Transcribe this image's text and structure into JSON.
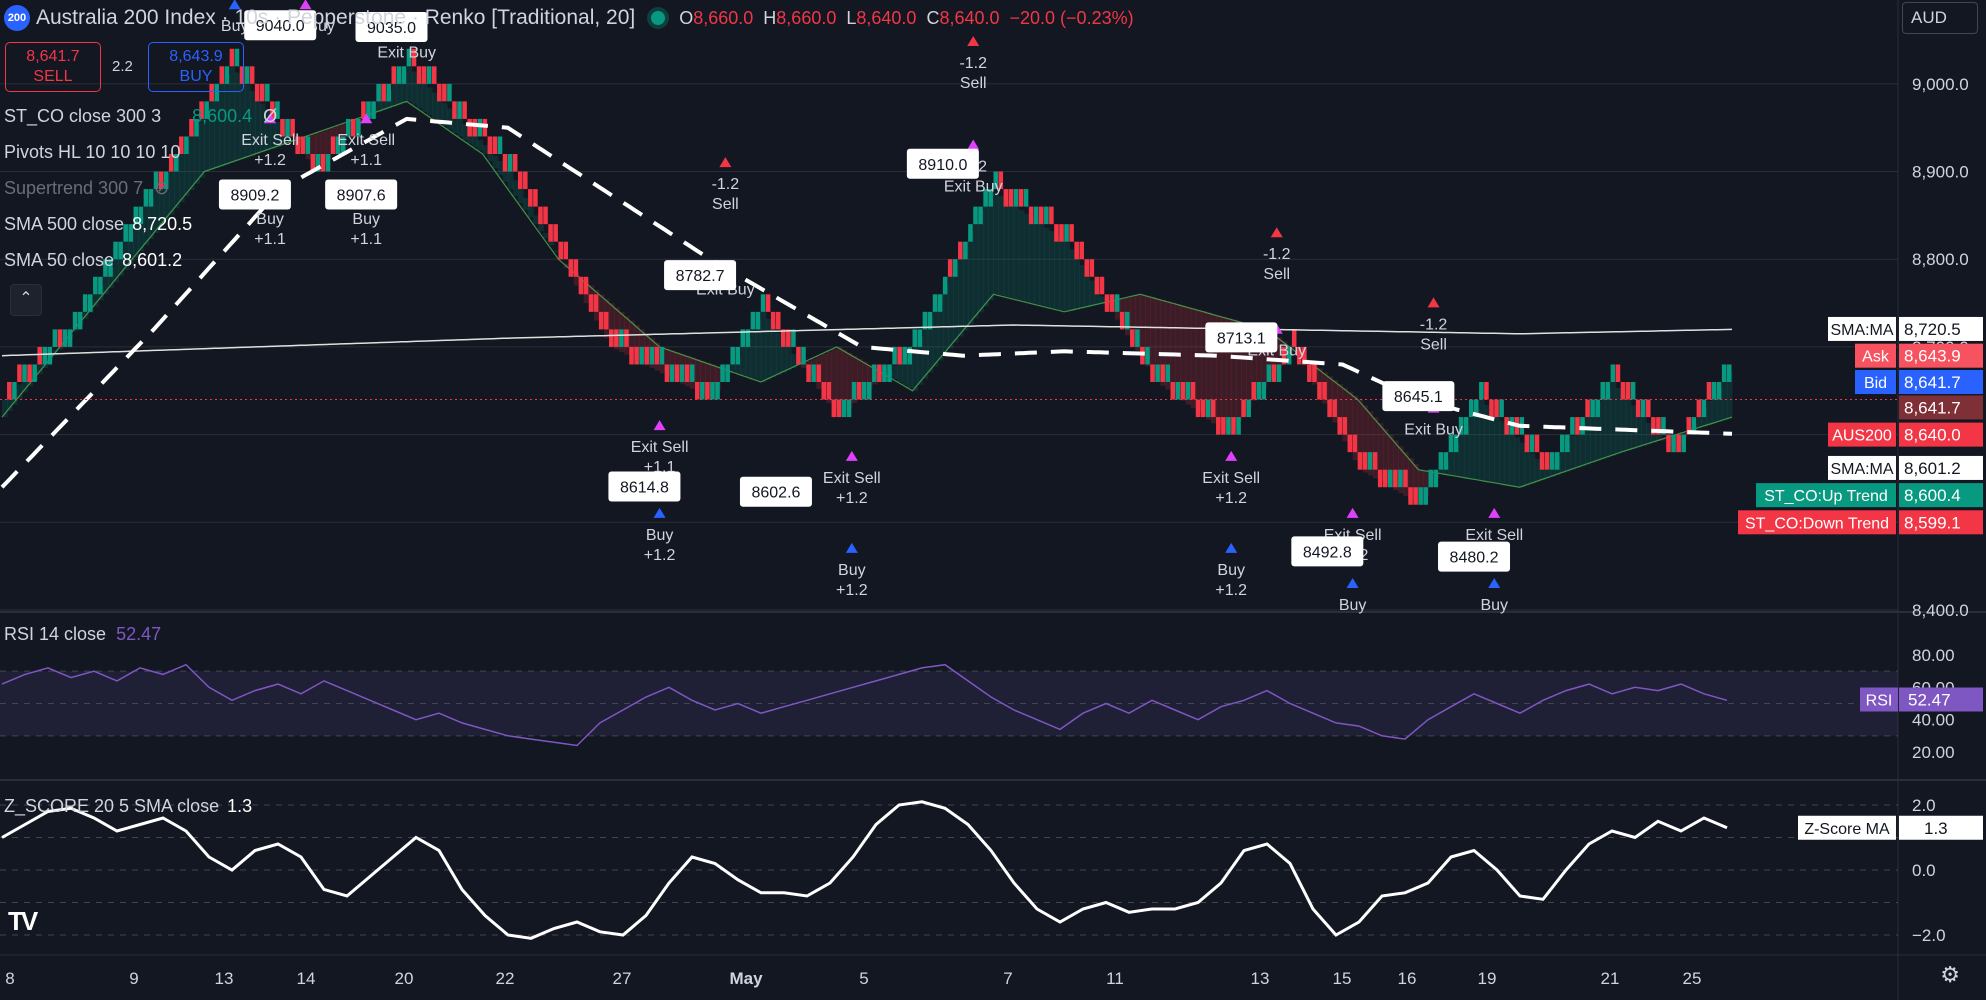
{
  "header": {
    "symbol_badge": "200",
    "title": "Australia 200 Index · 10s · Pepperstone · Renko [Traditional, 20]",
    "ohlc": {
      "o_label": "O",
      "o": "8,660.0",
      "h_label": "H",
      "h": "8,660.0",
      "l_label": "L",
      "l": "8,640.0",
      "c_label": "C",
      "c": "8,640.0",
      "change": "−20.0 (−0.23%)"
    },
    "currency": "AUD"
  },
  "trade": {
    "sell_price": "8,641.7",
    "sell_label": "SELL",
    "spread": "2.2",
    "buy_price": "8,643.9",
    "buy_label": "BUY"
  },
  "indicators": {
    "st_co": {
      "label": "ST_CO close 300 3",
      "value": "8,600.4",
      "extra": "Ø"
    },
    "pivots": {
      "label": "Pivots HL 10 10 10 10"
    },
    "supertrend": {
      "label": "Supertrend 300 7"
    },
    "sma500": {
      "label": "SMA 500 close",
      "value": "8,720.5"
    },
    "sma50": {
      "label": "SMA 50 close",
      "value": "8,601.2"
    },
    "rsi": {
      "label": "RSI 14 close",
      "value": "52.47"
    },
    "zscore": {
      "label": "Z_SCORE 20 5 SMA close",
      "value": "1.3"
    }
  },
  "colors": {
    "bg": "#131722",
    "up": "#089981",
    "down": "#f23645",
    "rsi": "#7e57c2",
    "signal_buy": "#2962ff",
    "signal_exit": "#e040fb",
    "grid": "#2a2e39",
    "text": "#d1d4dc"
  },
  "chart_data": [
    {
      "type": "renko",
      "title": "Australia 200 Index · 10s · Pepperstone · Renko [Traditional, 20]",
      "box_size": 20,
      "ylim": [
        8400,
        9050
      ],
      "y_ticks": [
        "9,000.0",
        "8,900.0",
        "8,800.0",
        "8,700.0",
        "8,600.0",
        "8,500.0",
        "8,400.0"
      ],
      "x_ticks": [
        "8",
        "9",
        "13",
        "14",
        "20",
        "22",
        "27",
        "May",
        "5",
        "7",
        "11",
        "13",
        "15",
        "16",
        "19",
        "21",
        "25"
      ],
      "close_path": [
        [
          0,
          8640
        ],
        [
          14,
          8720
        ],
        [
          30,
          8880
        ],
        [
          45,
          9020
        ],
        [
          62,
          8900
        ],
        [
          80,
          9020
        ],
        [
          100,
          8900
        ],
        [
          120,
          8700
        ],
        [
          140,
          8640
        ],
        [
          150,
          8740
        ],
        [
          165,
          8620
        ],
        [
          180,
          8700
        ],
        [
          195,
          8880
        ],
        [
          210,
          8820
        ],
        [
          228,
          8660
        ],
        [
          242,
          8600
        ],
        [
          255,
          8700
        ],
        [
          268,
          8560
        ],
        [
          280,
          8520
        ],
        [
          292,
          8640
        ],
        [
          305,
          8560
        ],
        [
          318,
          8660
        ],
        [
          330,
          8580
        ],
        [
          342,
          8680
        ]
      ],
      "sma500_path": [
        [
          0,
          8690
        ],
        [
          100,
          8710
        ],
        [
          200,
          8725
        ],
        [
          300,
          8715
        ],
        [
          342,
          8720
        ]
      ],
      "sma50_path": [
        [
          0,
          8540
        ],
        [
          30,
          8720
        ],
        [
          55,
          8880
        ],
        [
          80,
          8960
        ],
        [
          100,
          8950
        ],
        [
          140,
          8800
        ],
        [
          170,
          8700
        ],
        [
          190,
          8690
        ],
        [
          210,
          8695
        ],
        [
          240,
          8690
        ],
        [
          265,
          8680
        ],
        [
          280,
          8640
        ],
        [
          300,
          8610
        ],
        [
          342,
          8601
        ]
      ],
      "supertrend_path": [
        [
          0,
          8620
        ],
        [
          40,
          8900
        ],
        [
          80,
          8980
        ],
        [
          95,
          8920
        ],
        [
          110,
          8800
        ],
        [
          130,
          8700
        ],
        [
          150,
          8660
        ],
        [
          165,
          8700
        ],
        [
          180,
          8650
        ],
        [
          196,
          8760
        ],
        [
          210,
          8740
        ],
        [
          225,
          8760
        ],
        [
          250,
          8720
        ],
        [
          268,
          8640
        ],
        [
          280,
          8560
        ],
        [
          300,
          8540
        ],
        [
          320,
          8580
        ],
        [
          342,
          8620
        ]
      ],
      "pivot_labels": [
        {
          "text": "9040.0",
          "i": 55,
          "v": 9068
        },
        {
          "text": "9035.0",
          "i": 77,
          "v": 9066
        },
        {
          "text": "8909.2",
          "i": 50,
          "v": 8875
        },
        {
          "text": "8907.6",
          "i": 71,
          "v": 8875
        },
        {
          "text": "8782.7",
          "i": 138,
          "v": 8783
        },
        {
          "text": "8614.8",
          "i": 127,
          "v": 8542
        },
        {
          "text": "8602.6",
          "i": 153,
          "v": 8536
        },
        {
          "text": "8910.0",
          "i": 186,
          "v": 8910
        },
        {
          "text": "8713.1",
          "i": 245,
          "v": 8712
        },
        {
          "text": "8645.1",
          "i": 280,
          "v": 8645
        },
        {
          "text": "8492.8",
          "i": 262,
          "v": 8468
        },
        {
          "text": "8480.2",
          "i": 291,
          "v": 8462
        }
      ],
      "signals": [
        {
          "text": "Exit Sell",
          "sub": "+1.2",
          "i": 53,
          "v": 8930,
          "kind": "exit"
        },
        {
          "text": "Buy",
          "sub": "+1.1",
          "i": 53,
          "v": 8840,
          "kind": "buy"
        },
        {
          "text": "Exit Sell",
          "sub": "+1.1",
          "i": 72,
          "v": 8930,
          "kind": "exit"
        },
        {
          "text": "Buy",
          "sub": "+1.1",
          "i": 72,
          "v": 8840,
          "kind": "buy"
        },
        {
          "text": "Exit Buy",
          "sub": "",
          "i": 80,
          "v": 9030,
          "kind": "exit"
        },
        {
          "text": "Exit Buy",
          "sub": "",
          "i": 60,
          "v": 9060,
          "kind": "exit"
        },
        {
          "text": "Buy",
          "sub": "",
          "i": 46,
          "v": 9060,
          "kind": "buy"
        },
        {
          "text": "-1.2",
          "sub": "Sell",
          "i": 143,
          "v": 8880,
          "kind": "sell"
        },
        {
          "text": "Exit Buy",
          "sub": "",
          "i": 143,
          "v": 8760,
          "kind": "exit"
        },
        {
          "text": "Exit Sell",
          "sub": "+1.1",
          "i": 130,
          "v": 8580,
          "kind": "exit"
        },
        {
          "text": "Buy",
          "sub": "+1.2",
          "i": 130,
          "v": 8480,
          "kind": "buy"
        },
        {
          "text": "Exit Sell",
          "sub": "+1.2",
          "i": 168,
          "v": 8545,
          "kind": "exit"
        },
        {
          "text": "Buy",
          "sub": "+1.2",
          "i": 168,
          "v": 8440,
          "kind": "buy"
        },
        {
          "text": "-1.2",
          "sub": "Sell",
          "i": 192,
          "v": 9018,
          "kind": "sell"
        },
        {
          "text": "-1.2",
          "sub": "Exit Buy",
          "i": 192,
          "v": 8900,
          "kind": "exit"
        },
        {
          "text": "-1.2",
          "sub": "Sell",
          "i": 252,
          "v": 8800,
          "kind": "sell"
        },
        {
          "text": "Exit Buy",
          "sub": "",
          "i": 252,
          "v": 8690,
          "kind": "exit"
        },
        {
          "text": "Exit Sell",
          "sub": "+1.2",
          "i": 243,
          "v": 8545,
          "kind": "exit"
        },
        {
          "text": "Buy",
          "sub": "+1.2",
          "i": 243,
          "v": 8440,
          "kind": "buy"
        },
        {
          "text": "-1.2",
          "sub": "Sell",
          "i": 283,
          "v": 8720,
          "kind": "sell"
        },
        {
          "text": "Exit Buy",
          "sub": "",
          "i": 283,
          "v": 8600,
          "kind": "exit"
        },
        {
          "text": "Exit Sell",
          "sub": "+1.2",
          "i": 267,
          "v": 8480,
          "kind": "exit"
        },
        {
          "text": "Exit Sell",
          "sub": "+1.2",
          "i": 295,
          "v": 8480,
          "kind": "exit"
        },
        {
          "text": "Buy",
          "sub": "",
          "i": 267,
          "v": 8400,
          "kind": "buy"
        },
        {
          "text": "Buy",
          "sub": "",
          "i": 295,
          "v": 8400,
          "kind": "buy"
        }
      ],
      "price_scale_tags": [
        {
          "label": "SMA:MA",
          "value": "8,720.5",
          "bg": "#ffffff",
          "fg": "#131722",
          "v": 8720.5
        },
        {
          "label": "Ask",
          "value": "8,643.9",
          "bg": "#f7525f",
          "fg": "#ffffff",
          "v": 8690
        },
        {
          "label": "Bid",
          "value": "8,641.7",
          "bg": "#2962ff",
          "fg": "#ffffff",
          "v": 8660
        },
        {
          "label": "",
          "value": "8,641.7",
          "bg": "#7f2f36",
          "fg": "#ffffff",
          "v": 8631
        },
        {
          "label": "AUS200",
          "value": "8,640.0",
          "bg": "#f23645",
          "fg": "#ffffff",
          "v": 8600
        },
        {
          "label": "SMA:MA",
          "value": "8,601.2",
          "bg": "#ffffff",
          "fg": "#131722",
          "v": 8562
        },
        {
          "label": "ST_CO:Up Trend",
          "value": "8,600.4",
          "bg": "#089981",
          "fg": "#ffffff",
          "v": 8531
        },
        {
          "label": "ST_CO:Down Trend",
          "value": "8,599.1",
          "bg": "#f23645",
          "fg": "#ffffff",
          "v": 8500
        }
      ]
    },
    {
      "type": "line",
      "title": "RSI 14 close",
      "ylim": [
        20,
        80
      ],
      "y_ticks": [
        "80.00",
        "60.00",
        "40.00",
        "20.00"
      ],
      "band": [
        30,
        70
      ],
      "series": [
        {
          "name": "RSI",
          "values": [
            62,
            68,
            72,
            66,
            70,
            64,
            72,
            68,
            74,
            60,
            52,
            58,
            62,
            56,
            64,
            58,
            52,
            46,
            40,
            44,
            38,
            34,
            30,
            28,
            26,
            24,
            38,
            46,
            54,
            60,
            52,
            46,
            50,
            44,
            48,
            52,
            56,
            60,
            64,
            68,
            72,
            74,
            64,
            54,
            46,
            40,
            34,
            44,
            50,
            44,
            52,
            46,
            40,
            48,
            52,
            58,
            50,
            44,
            38,
            36,
            30,
            28,
            40,
            48,
            56,
            50,
            44,
            52,
            58,
            62,
            56,
            60,
            58,
            62,
            56,
            52
          ]
        }
      ],
      "last": "52.47",
      "tag": {
        "label": "RSI",
        "value": "52.47"
      }
    },
    {
      "type": "line",
      "title": "Z_SCORE 20 5 SMA close",
      "ylim": [
        -2,
        2
      ],
      "y_ticks": [
        "2.0",
        "0.0",
        "−2.0"
      ],
      "series": [
        {
          "name": "Z-Score MA",
          "values": [
            1.0,
            1.4,
            1.8,
            1.9,
            1.6,
            1.2,
            1.4,
            1.6,
            1.2,
            0.4,
            0.0,
            0.6,
            0.8,
            0.4,
            -0.6,
            -0.8,
            -0.2,
            0.4,
            1.0,
            0.6,
            -0.6,
            -1.4,
            -2.0,
            -2.1,
            -1.8,
            -1.6,
            -1.9,
            -2.0,
            -1.4,
            -0.4,
            0.4,
            0.2,
            -0.3,
            -0.7,
            -0.7,
            -0.8,
            -0.4,
            0.4,
            1.4,
            2.0,
            2.1,
            1.9,
            1.4,
            0.6,
            -0.4,
            -1.2,
            -1.6,
            -1.2,
            -1.0,
            -1.3,
            -1.2,
            -1.2,
            -1.0,
            -0.4,
            0.6,
            0.8,
            0.2,
            -1.2,
            -2.0,
            -1.6,
            -0.8,
            -0.7,
            -0.4,
            0.4,
            0.6,
            0.0,
            -0.8,
            -0.9,
            0.0,
            0.8,
            1.2,
            1.0,
            1.5,
            1.2,
            1.6,
            1.3
          ]
        }
      ],
      "last": "1.3",
      "tag": {
        "label": "Z-Score MA",
        "value": "1.3"
      }
    }
  ]
}
